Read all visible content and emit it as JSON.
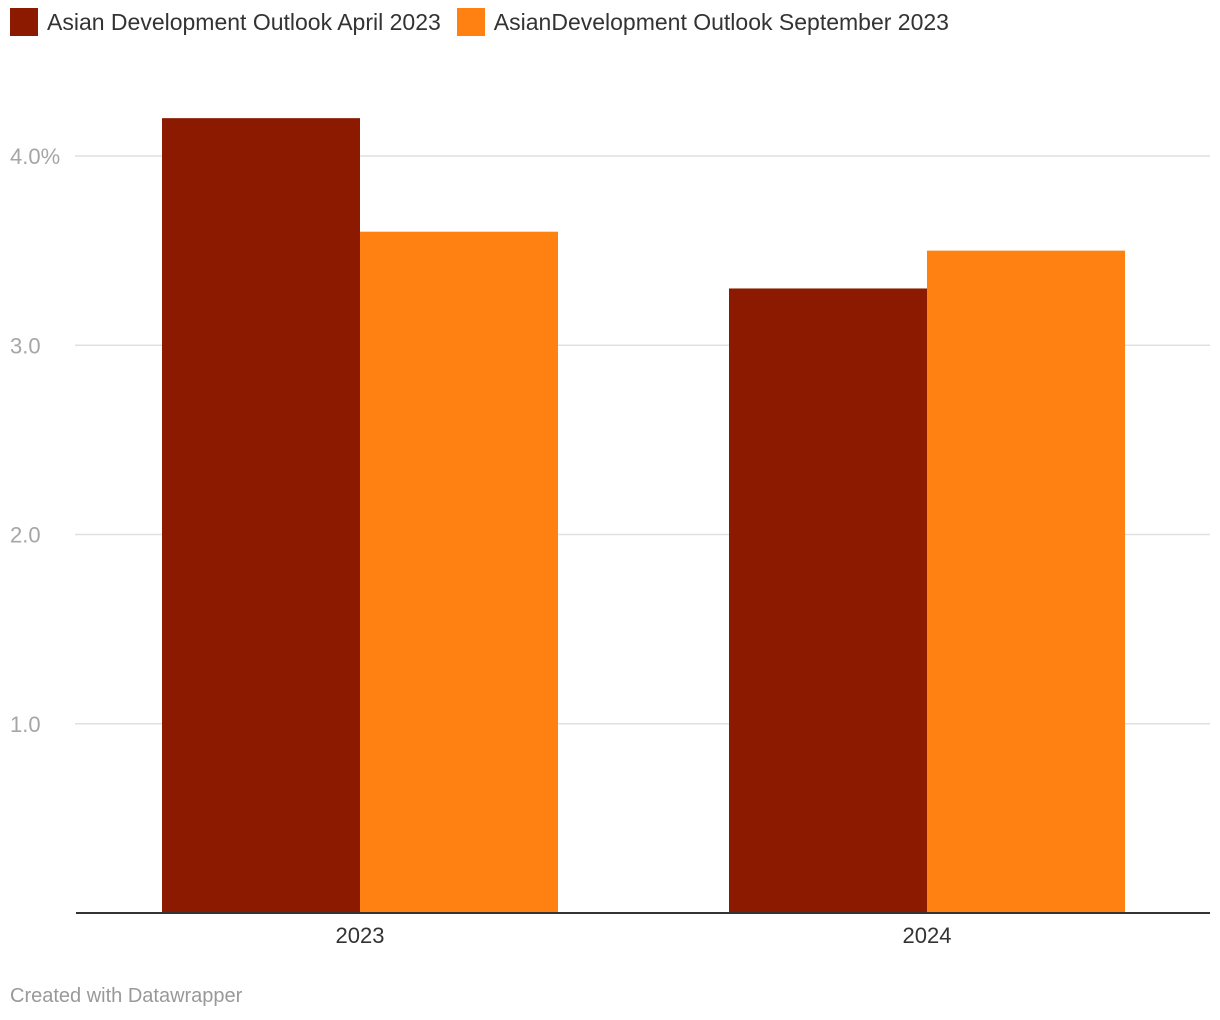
{
  "chart_data": {
    "type": "bar",
    "categories": [
      "2023",
      "2024"
    ],
    "series": [
      {
        "name": "Asian Development Outlook April 2023",
        "color": "#8b1a00",
        "values": [
          4.2,
          3.3
        ]
      },
      {
        "name": "AsianDevelopment Outlook September 2023",
        "color": "#fe8112",
        "values": [
          3.6,
          3.5
        ]
      }
    ],
    "ylim": [
      0,
      4.4
    ],
    "yticks": [
      {
        "value": 1.0,
        "label": "1.0"
      },
      {
        "value": 2.0,
        "label": "2.0"
      },
      {
        "value": 3.0,
        "label": "3.0"
      },
      {
        "value": 4.0,
        "label": "4.0%"
      }
    ],
    "title": "",
    "xlabel": "",
    "ylabel": "",
    "legend": "top-left",
    "grid": true
  },
  "credit": "Created with Datawrapper"
}
